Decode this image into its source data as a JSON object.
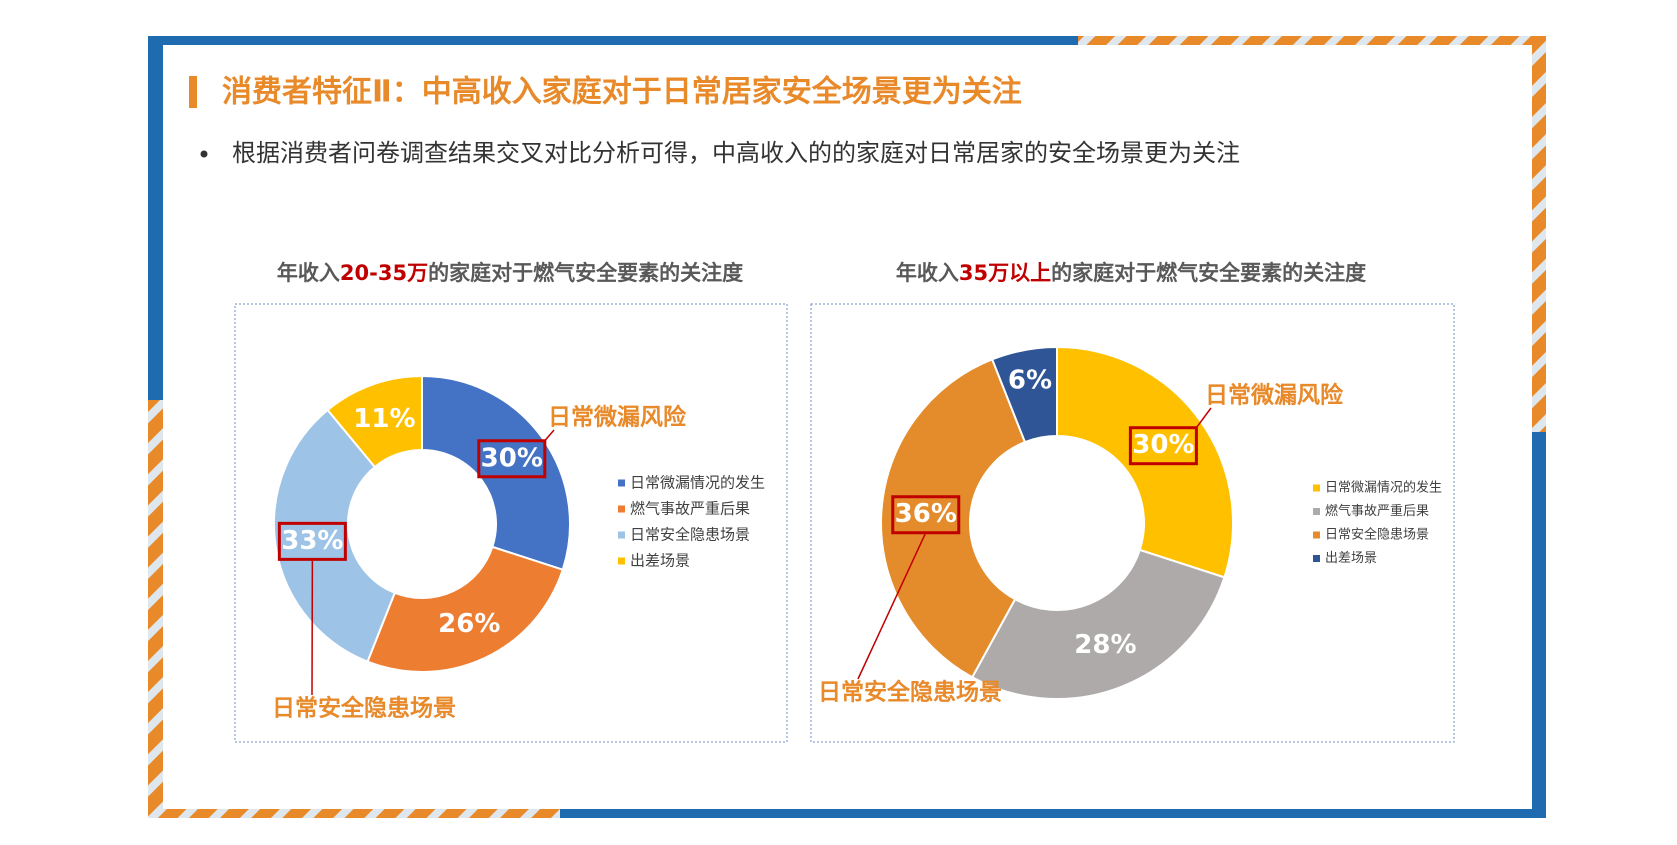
{
  "header": {
    "title": "消费者特征Ⅱ：中高收入家庭对于日常居家安全场景更为关注",
    "bullet": "根据消费者问卷调查结果交叉对比分析可得，中高收入的的家庭对日常居家的安全场景更为关注"
  },
  "chart_data": [
    {
      "type": "donut",
      "title_parts": [
        "年收入",
        "20-35万",
        "的家庭对于燃气安全要素的关注度"
      ],
      "categories": [
        "日常微漏情况的发生",
        "燃气事故严重后果",
        "日常安全隐患场景",
        "出差场景"
      ],
      "values": [
        30,
        26,
        33,
        11
      ],
      "value_labels": [
        "30%",
        "26%",
        "33%",
        "11%"
      ],
      "colors": [
        "#4472c4",
        "#ed7d31",
        "#9dc3e6",
        "#ffc000"
      ],
      "annotations": [
        "日常微漏风险",
        "日常安全隐患场景"
      ]
    },
    {
      "type": "donut",
      "title_parts": [
        "年收入",
        "35万以上",
        "的家庭对于燃气安全要素的关注度"
      ],
      "categories": [
        "日常微漏情况的发生",
        "燃气事故严重后果",
        "日常安全隐患场景",
        "出差场景"
      ],
      "values": [
        30,
        28,
        36,
        6
      ],
      "value_labels": [
        "30%",
        "28%",
        "36%",
        "6%"
      ],
      "colors": [
        "#ffc000",
        "#aeaaaa",
        "#e48b2b",
        "#2f5597"
      ],
      "annotations": [
        "日常微漏风险",
        "日常安全隐患场景"
      ]
    }
  ]
}
